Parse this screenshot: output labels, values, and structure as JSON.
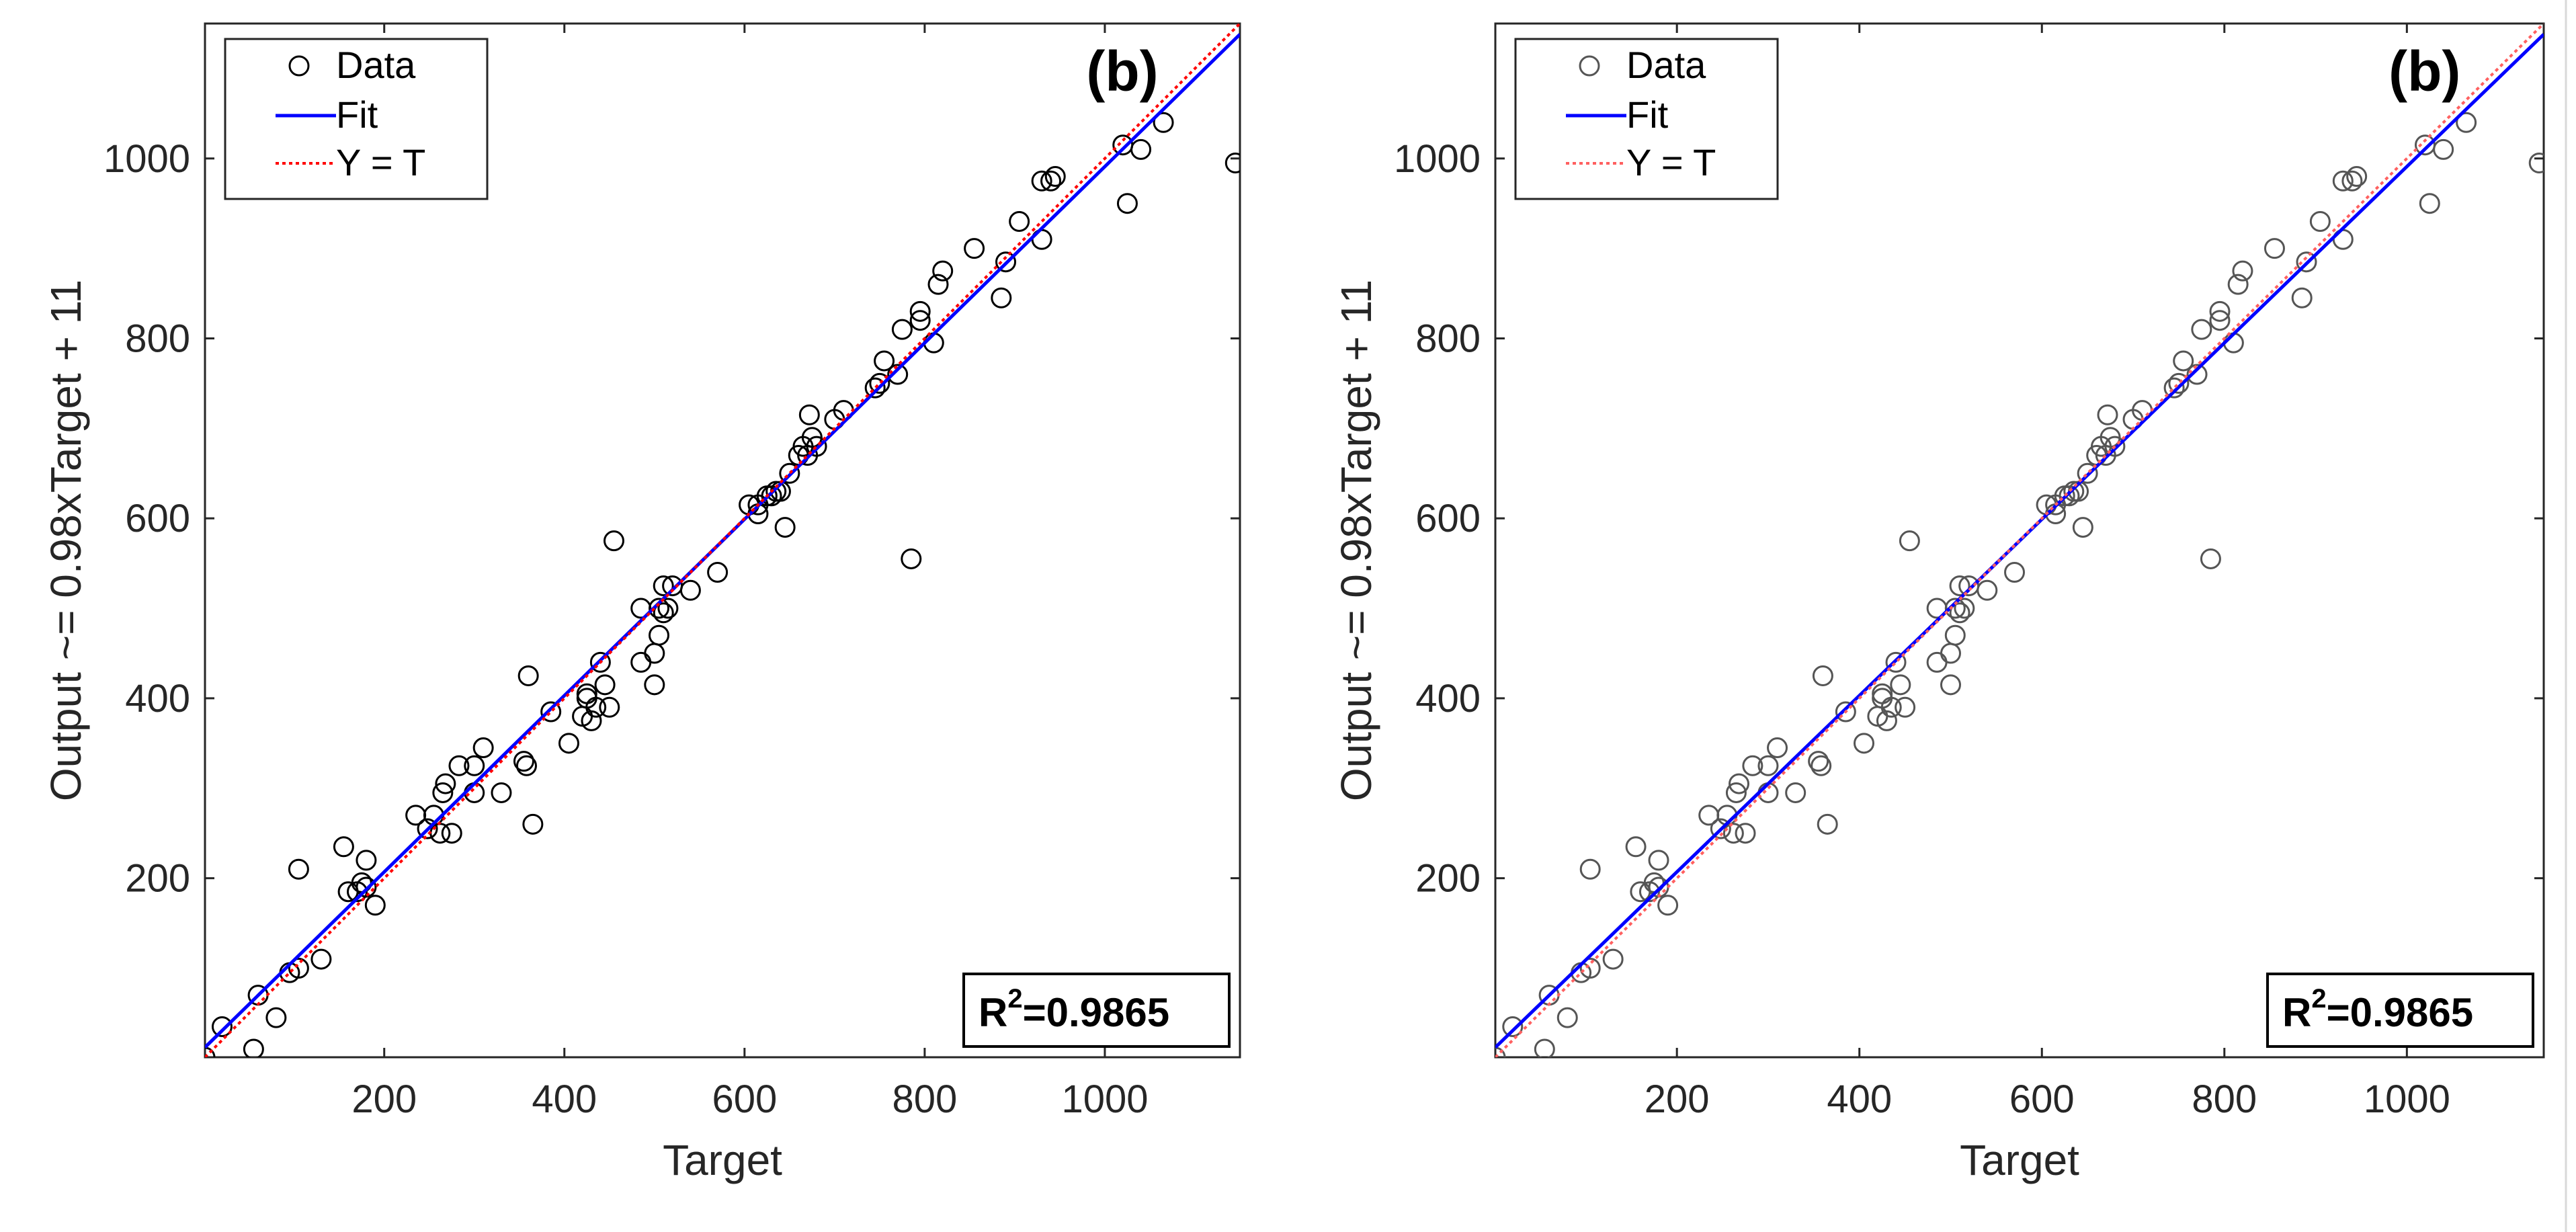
{
  "charts": [
    {
      "panel_label": "(b)",
      "r2_label": "=0.9865",
      "r2_prefix": "R",
      "r2_exp": "2",
      "colors": {
        "fit": "#0000ff",
        "identity": "#ff0000",
        "data": "#000000"
      },
      "legend": {
        "data": "Data",
        "fit": "Fit",
        "identity": "Y = T"
      }
    },
    {
      "panel_label": "(b)",
      "r2_label": "=0.9865",
      "r2_prefix": "R",
      "r2_exp": "2",
      "colors": {
        "fit": "#0000ff",
        "identity": "#ff6060",
        "data": "#555555"
      },
      "legend": {
        "data": "Data",
        "fit": "Fit",
        "identity": "Y = T"
      }
    }
  ],
  "chart_data": [
    {
      "type": "scatter",
      "title": "",
      "xlabel": "Target",
      "ylabel": "Output ~= 0.98xTarget + 11",
      "xlim": [
        1,
        1150
      ],
      "ylim": [
        1,
        1150
      ],
      "xticks": [
        200,
        400,
        600,
        800,
        1000
      ],
      "yticks": [
        200,
        400,
        600,
        800,
        1000
      ],
      "legend_position": "top-left",
      "series": [
        {
          "name": "Data",
          "x": [
            1,
            20,
            60,
            55,
            80,
            95,
            105,
            105,
            130,
            155,
            160,
            170,
            175,
            180,
            180,
            190,
            235,
            248,
            255,
            262,
            265,
            268,
            275,
            283,
            300,
            300,
            310,
            330,
            355,
            360,
            358,
            365,
            385,
            405,
            420,
            425,
            425,
            430,
            435,
            440,
            445,
            450,
            455,
            485,
            485,
            500,
            500,
            505,
            505,
            510,
            510,
            515,
            520,
            540,
            570,
            605,
            615,
            615,
            625,
            630,
            635,
            640,
            645,
            650,
            660,
            665,
            670,
            672,
            675,
            680,
            700,
            710,
            745,
            750,
            755,
            770,
            775,
            785,
            795,
            795,
            810,
            815,
            820,
            855,
            885,
            890,
            905,
            930,
            930,
            940,
            945,
            1020,
            1025,
            1040,
            1065,
            1145
          ],
          "y": [
            1,
            35,
            70,
            10,
            45,
            95,
            100,
            210,
            110,
            235,
            185,
            185,
            195,
            220,
            190,
            170,
            270,
            255,
            270,
            250,
            295,
            305,
            250,
            325,
            295,
            325,
            345,
            295,
            330,
            425,
            325,
            260,
            385,
            350,
            380,
            400,
            405,
            375,
            390,
            440,
            415,
            390,
            575,
            500,
            440,
            415,
            450,
            470,
            500,
            525,
            495,
            500,
            525,
            520,
            540,
            615,
            605,
            615,
            625,
            625,
            630,
            630,
            590,
            650,
            670,
            680,
            670,
            715,
            690,
            680,
            710,
            720,
            745,
            750,
            775,
            760,
            810,
            555,
            830,
            820,
            795,
            860,
            875,
            900,
            845,
            885,
            930,
            975,
            910,
            975,
            980,
            1015,
            950,
            1010,
            1040,
            995
          ]
        },
        {
          "name": "Fit",
          "x": [
            1,
            1150
          ],
          "y": [
            11.98,
            1138
          ]
        },
        {
          "name": "Y = T",
          "x": [
            1,
            1150
          ],
          "y": [
            1,
            1150
          ]
        }
      ],
      "annotations": [
        "(b)",
        "R2=0.9865"
      ]
    },
    {
      "type": "scatter",
      "title": "",
      "xlabel": "Target",
      "ylabel": "Output ~= 0.98xTarget + 11",
      "xlim": [
        1,
        1150
      ],
      "ylim": [
        1,
        1150
      ],
      "xticks": [
        200,
        400,
        600,
        800,
        1000
      ],
      "yticks": [
        200,
        400,
        600,
        800,
        1000
      ],
      "legend_position": "top-left",
      "series": [
        {
          "name": "Data",
          "x": [
            1,
            20,
            60,
            55,
            80,
            95,
            105,
            105,
            130,
            155,
            160,
            170,
            175,
            180,
            180,
            190,
            235,
            248,
            255,
            262,
            265,
            268,
            275,
            283,
            300,
            300,
            310,
            330,
            355,
            360,
            358,
            365,
            385,
            405,
            420,
            425,
            425,
            430,
            435,
            440,
            445,
            450,
            455,
            485,
            485,
            500,
            500,
            505,
            505,
            510,
            510,
            515,
            520,
            540,
            570,
            605,
            615,
            615,
            625,
            630,
            635,
            640,
            645,
            650,
            660,
            665,
            670,
            672,
            675,
            680,
            700,
            710,
            745,
            750,
            755,
            770,
            775,
            785,
            795,
            795,
            810,
            815,
            820,
            855,
            885,
            890,
            905,
            930,
            930,
            940,
            945,
            1020,
            1025,
            1040,
            1065,
            1145
          ],
          "y": [
            1,
            35,
            70,
            10,
            45,
            95,
            100,
            210,
            110,
            235,
            185,
            185,
            195,
            220,
            190,
            170,
            270,
            255,
            270,
            250,
            295,
            305,
            250,
            325,
            295,
            325,
            345,
            295,
            330,
            425,
            325,
            260,
            385,
            350,
            380,
            400,
            405,
            375,
            390,
            440,
            415,
            390,
            575,
            500,
            440,
            415,
            450,
            470,
            500,
            525,
            495,
            500,
            525,
            520,
            540,
            615,
            605,
            615,
            625,
            625,
            630,
            630,
            590,
            650,
            670,
            680,
            670,
            715,
            690,
            680,
            710,
            720,
            745,
            750,
            775,
            760,
            810,
            555,
            830,
            820,
            795,
            860,
            875,
            900,
            845,
            885,
            930,
            975,
            910,
            975,
            980,
            1015,
            950,
            1010,
            1040,
            995
          ]
        },
        {
          "name": "Fit",
          "x": [
            1,
            1150
          ],
          "y": [
            11.98,
            1138
          ]
        },
        {
          "name": "Y = T",
          "x": [
            1,
            1150
          ],
          "y": [
            1,
            1150
          ]
        }
      ],
      "annotations": [
        "(b)",
        "R2=0.9865"
      ]
    }
  ]
}
